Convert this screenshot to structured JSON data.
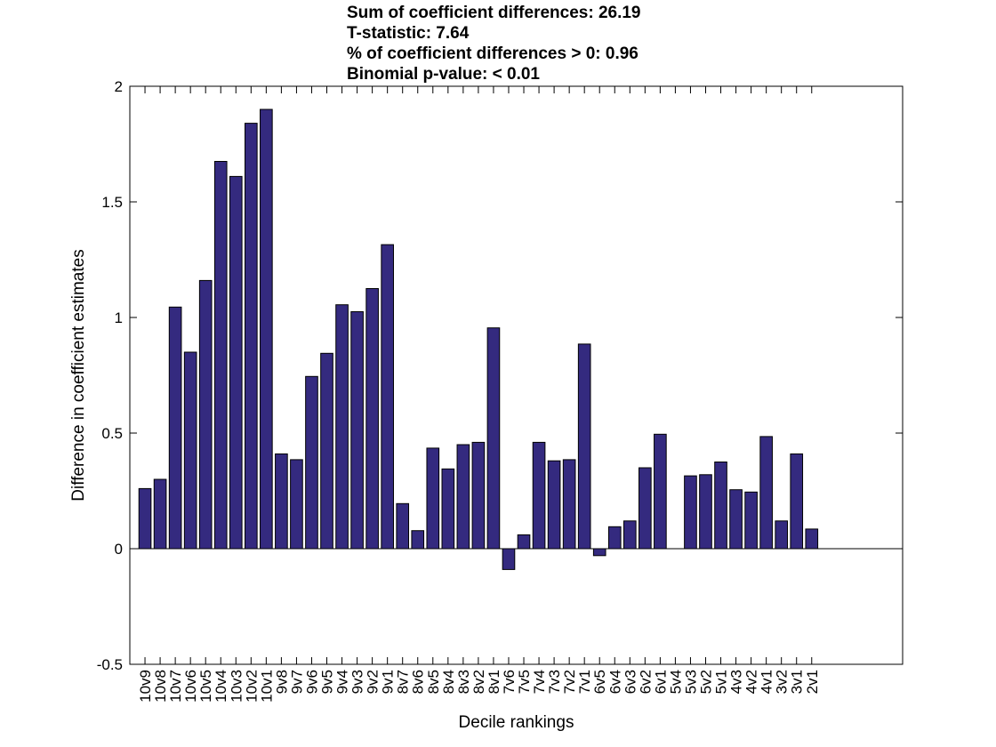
{
  "chart_data": {
    "type": "bar",
    "title_lines": [
      "Sum of coefficient differences: 26.19",
      "T-statistic: 7.64",
      "% of coefficient differences > 0: 0.96",
      "Binomial p-value: < 0.01"
    ],
    "xlabel": "Decile rankings",
    "ylabel": "Difference in coefficient estimates",
    "ylim": [
      -0.5,
      2
    ],
    "yticks": [
      -0.5,
      0,
      0.5,
      1,
      1.5,
      2
    ],
    "ytick_labels": [
      "-0.5",
      "0",
      "0.5",
      "1",
      "1.5",
      "2"
    ],
    "xlim": [
      0,
      51
    ],
    "categories": [
      "10v9",
      "10v8",
      "10v7",
      "10v6",
      "10v5",
      "10v4",
      "10v3",
      "10v2",
      "10v1",
      "9v8",
      "9v7",
      "9v6",
      "9v5",
      "9v4",
      "9v3",
      "9v2",
      "9v1",
      "8v7",
      "8v6",
      "8v5",
      "8v4",
      "8v3",
      "8v2",
      "8v1",
      "7v6",
      "7v5",
      "7v4",
      "7v3",
      "7v2",
      "7v1",
      "6v5",
      "6v4",
      "6v3",
      "6v2",
      "6v1",
      "5v4",
      "5v3",
      "5v2",
      "5v1",
      "4v3",
      "4v2",
      "4v1",
      "3v2",
      "3v1",
      "2v1"
    ],
    "values": [
      0.26,
      0.3,
      1.045,
      0.85,
      1.16,
      1.675,
      1.61,
      1.84,
      1.9,
      0.41,
      0.385,
      0.745,
      0.845,
      1.055,
      1.025,
      1.125,
      1.315,
      0.195,
      0.078,
      0.435,
      0.345,
      0.45,
      0.46,
      0.955,
      -0.09,
      0.06,
      0.46,
      0.38,
      0.385,
      0.885,
      -0.03,
      0.095,
      0.12,
      0.35,
      0.495,
      0.0,
      0.315,
      0.32,
      0.375,
      0.255,
      0.245,
      0.485,
      0.12,
      0.41,
      0.085
    ],
    "bar_color": "#342a7f",
    "bar_edge_color": "#000000",
    "grid": false,
    "legend": "none"
  }
}
